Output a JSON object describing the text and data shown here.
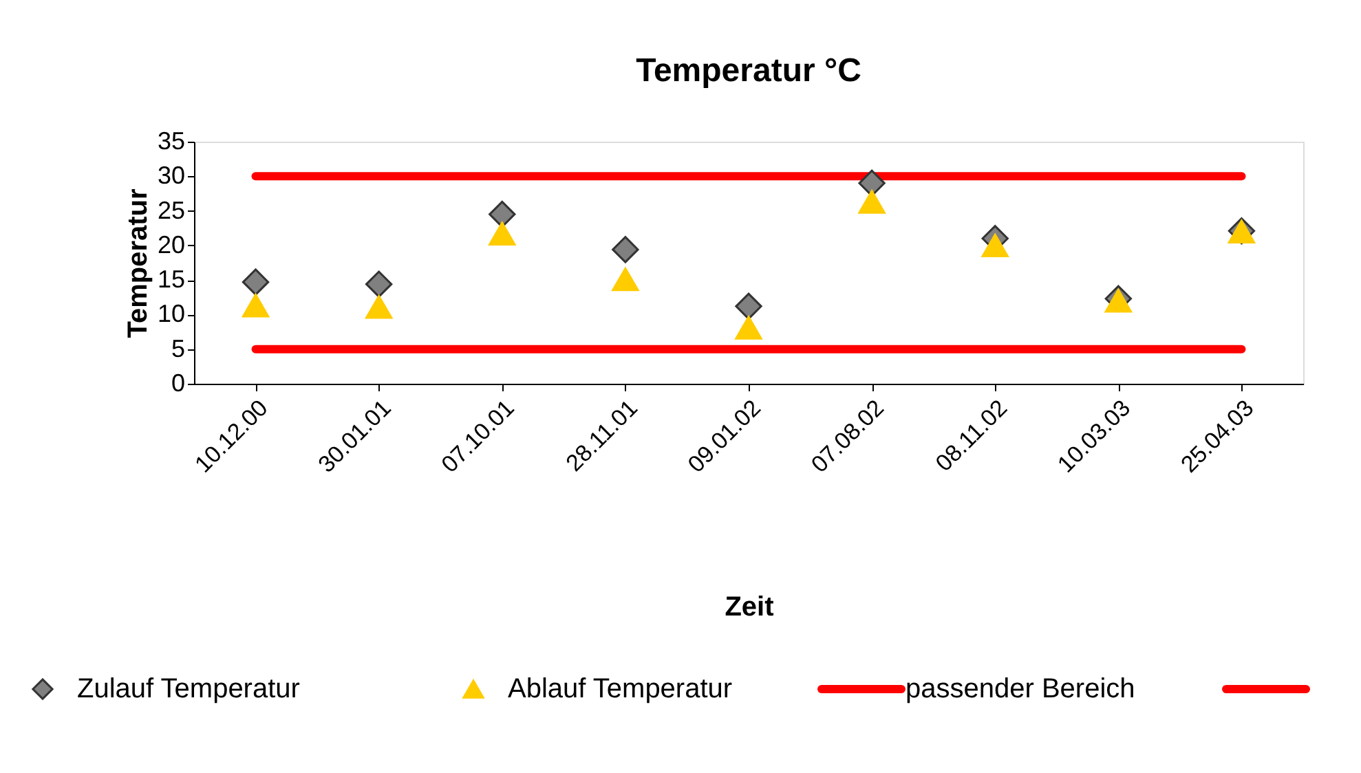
{
  "chart_data": {
    "type": "scatter",
    "title": "Temperatur °C",
    "xlabel": "Zeit",
    "ylabel": "Temperatur",
    "categories": [
      "10.12.00",
      "30.01.01",
      "07.10.01",
      "28.11.01",
      "09.01.02",
      "07.08.02",
      "08.11.02",
      "10.03.03",
      "25.04.03"
    ],
    "ylim": [
      0,
      35
    ],
    "yticks": [
      0,
      5,
      10,
      15,
      20,
      25,
      30,
      35
    ],
    "grid": false,
    "legend": "bottom",
    "series": [
      {
        "name": "Zulauf Temperatur",
        "marker": "diamond",
        "color": "#808080",
        "values": [
          14.7,
          14.4,
          24.5,
          19.4,
          11.2,
          29.0,
          21.0,
          12.3,
          22.1
        ]
      },
      {
        "name": "Ablauf Temperatur",
        "marker": "triangle",
        "color": "#ffcc00",
        "values": [
          11.3,
          11.1,
          21.7,
          15.1,
          8.1,
          26.3,
          20.0,
          12.0,
          22.0
        ]
      },
      {
        "name": "passender Bereich",
        "type": "line",
        "color": "#ff0000",
        "values": [
          30,
          30,
          30,
          30,
          30,
          30,
          30,
          30,
          30
        ]
      },
      {
        "type": "line",
        "color": "#ff0000",
        "values": [
          5,
          5,
          5,
          5,
          5,
          5,
          5,
          5,
          5
        ]
      }
    ]
  }
}
